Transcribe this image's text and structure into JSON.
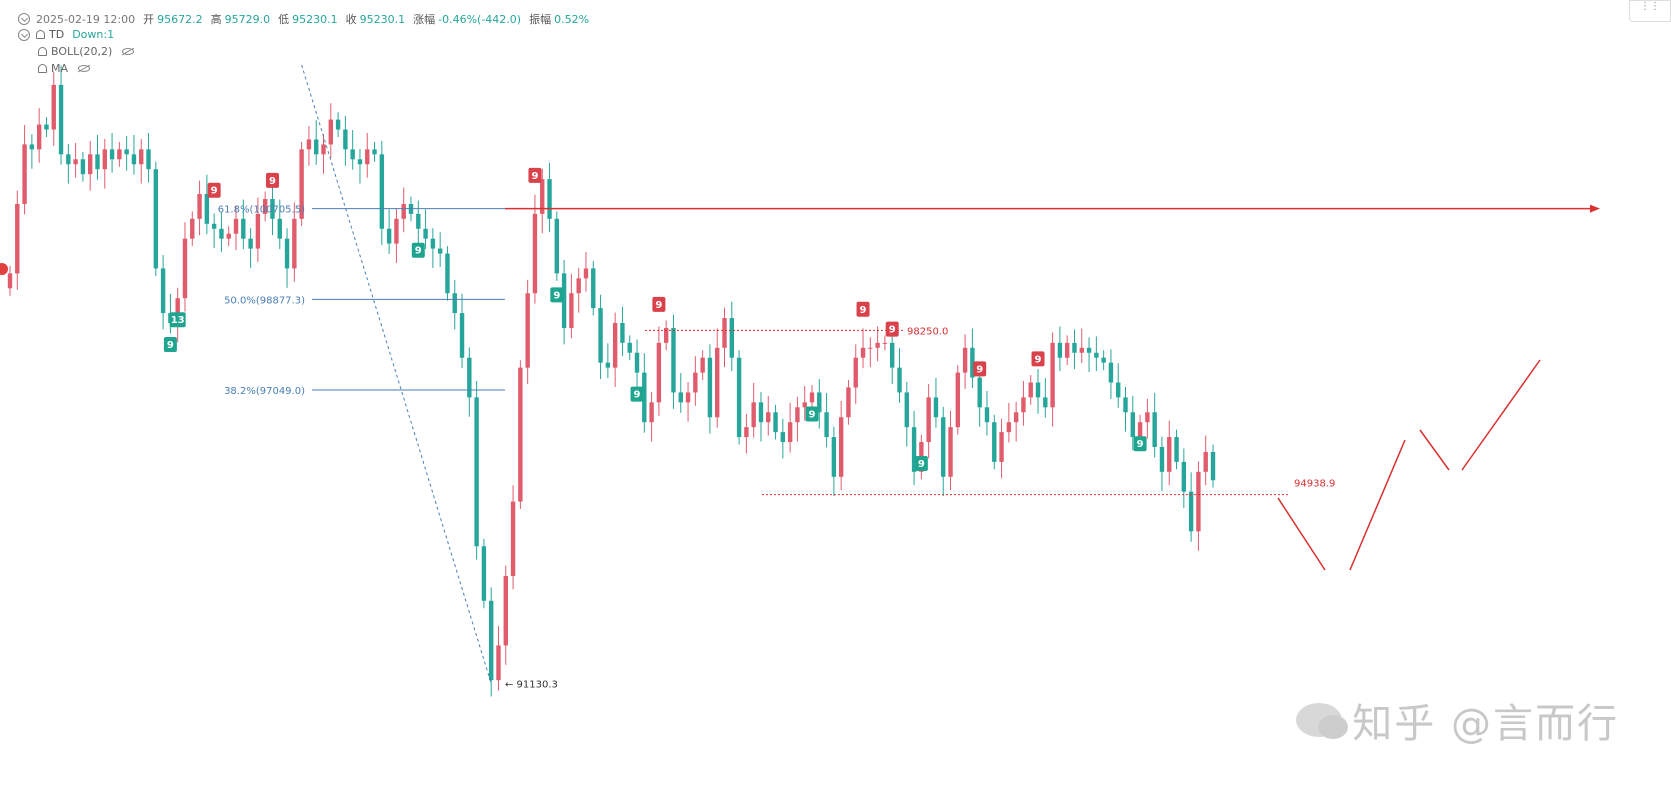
{
  "header": {
    "date": "2025-02-19 12:00",
    "open_label": "开",
    "open": "95672.2",
    "high_label": "高",
    "high": "95729.0",
    "low_label": "低",
    "low": "95230.1",
    "close_label": "收",
    "close": "95230.1",
    "change_label": "涨幅",
    "change": "-0.46%(-442.0)",
    "amp_label": "振幅",
    "amp": "0.52%",
    "td_label": "TD",
    "td_value": "Down:1",
    "boll_label": "BOLL(20,2)",
    "ma_label": "MA"
  },
  "colors": {
    "up": "#e05c6c",
    "down": "#26a69a",
    "fib": "#4a7fb5",
    "annot": "#d93030"
  },
  "chart_data": {
    "type": "candlestick",
    "y_range": [
      90800,
      103500
    ],
    "fib_levels": [
      {
        "label": "61.8%(100705.5)",
        "value": 100705.5
      },
      {
        "label": "50.0%(98877.3)",
        "value": 98877.3
      },
      {
        "label": "38.2%(97049.0)",
        "value": 97049.0
      }
    ],
    "low_label": "← 91130.3",
    "low_value": 91130.3,
    "resistance_label": "98250.0",
    "resistance_value": 98250.0,
    "support_label": "94938.9",
    "support_value": 94938.9,
    "resistance_arrow_value": 100705.5,
    "td_markers": [
      {
        "t": "9",
        "type": "sell",
        "i": 28
      },
      {
        "t": "9",
        "type": "sell",
        "i": 36
      },
      {
        "t": "9",
        "type": "sell",
        "i": 72
      },
      {
        "t": "9",
        "type": "sell",
        "i": 89
      },
      {
        "t": "9",
        "type": "sell",
        "i": 117
      },
      {
        "t": "9",
        "type": "sell",
        "i": 121
      },
      {
        "t": "9",
        "type": "sell",
        "i": 133
      },
      {
        "t": "9",
        "type": "sell",
        "i": 141
      },
      {
        "t": "9",
        "type": "buy",
        "i": 22
      },
      {
        "t": "13",
        "type": "buy",
        "i": 23
      },
      {
        "t": "9",
        "type": "buy",
        "i": 56
      },
      {
        "t": "9",
        "type": "buy",
        "i": 75
      },
      {
        "t": "9",
        "type": "buy",
        "i": 86
      },
      {
        "t": "9",
        "type": "buy",
        "i": 110
      },
      {
        "t": "9",
        "type": "buy",
        "i": 125
      },
      {
        "t": "9",
        "type": "buy",
        "i": 155
      }
    ],
    "closes": [
      99400,
      100800,
      102000,
      101900,
      102400,
      102300,
      103200,
      101800,
      101600,
      101700,
      101400,
      101800,
      101500,
      101900,
      101700,
      101900,
      101800,
      101600,
      101900,
      101500,
      99500,
      98600,
      98400,
      98900,
      100100,
      100500,
      101000,
      100400,
      100300,
      100100,
      100200,
      100500,
      100100,
      99900,
      100600,
      100900,
      100500,
      100100,
      99500,
      100500,
      101900,
      102100,
      101800,
      102000,
      102500,
      102300,
      101900,
      101700,
      101600,
      101900,
      101800,
      100300,
      100000,
      100500,
      100800,
      100600,
      100300,
      100100,
      99900,
      99800,
      99000,
      98600,
      97700,
      96900,
      93900,
      92800,
      91200,
      91900,
      93300,
      94800,
      97500,
      99000,
      100600,
      101300,
      100500,
      99400,
      98300,
      99000,
      99300,
      99500,
      98700,
      97600,
      97500,
      98400,
      98000,
      97800,
      97400,
      96400,
      96800,
      98000,
      98300,
      97000,
      96800,
      97000,
      97400,
      97700,
      96500,
      97900,
      98500,
      97700,
      96100,
      96300,
      96800,
      96400,
      96600,
      96200,
      96000,
      96400,
      96700,
      96800,
      97000,
      96600,
      96100,
      95300,
      96500,
      97100,
      97700,
      97900,
      97900,
      98000,
      98000,
      97500,
      97000,
      96300,
      95400,
      96000,
      96900,
      96500,
      95300,
      96300,
      97400,
      97900,
      97300,
      96700,
      96400,
      95600,
      96200,
      96400,
      96600,
      96900,
      97200,
      96900,
      96700,
      98000,
      97700,
      98000,
      97800,
      97900,
      97800,
      97700,
      97600,
      97200,
      96900,
      96600,
      96100,
      96400,
      96600,
      95900,
      95400,
      96100,
      95600,
      95000,
      94200,
      95400,
      95800,
      95230
    ]
  }
}
